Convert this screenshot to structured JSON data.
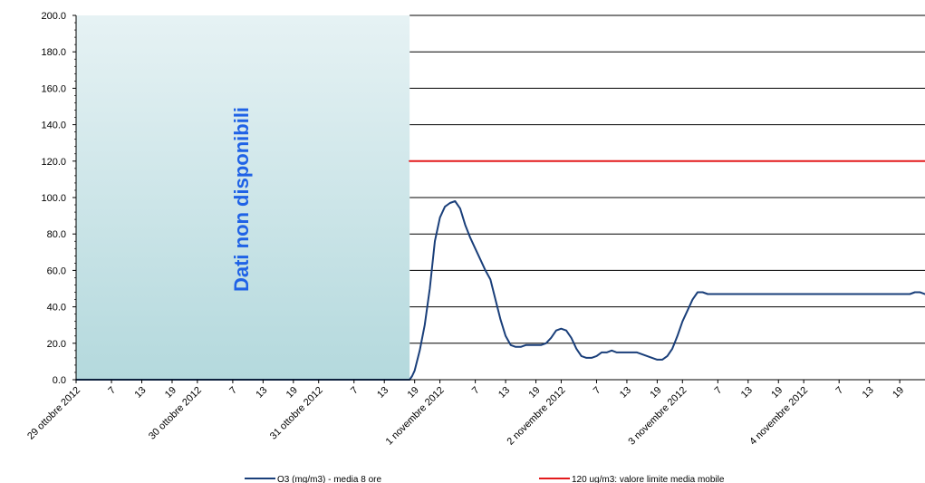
{
  "chart_data": {
    "type": "line",
    "y_ticks": [
      "0.0",
      "20.0",
      "40.0",
      "60.0",
      "80.0",
      "100.0",
      "120.0",
      "140.0",
      "160.0",
      "180.0",
      "200.0"
    ],
    "ylim": [
      0,
      200
    ],
    "x_tick_labels": [
      "29 ottobre 2012",
      "7",
      "13",
      "19",
      "30 ottobre 2012",
      "7",
      "13",
      "19",
      "31 ottobre 2012",
      "7",
      "13",
      "19",
      "1 novembre 2012",
      "7",
      "13",
      "19",
      "2 novembre 2012",
      "7",
      "13",
      "19",
      "3 novembre 2012",
      "7",
      "13",
      "19",
      "4 novembre 2012",
      "7",
      "13",
      "19"
    ],
    "x_unit": "hours from 29 ottobre 2012 00:00",
    "xlim": [
      0,
      168
    ],
    "no_data_text": "Dati non disponibili",
    "no_data_range_hours": [
      0,
      66
    ],
    "grid": "horizontal",
    "series": [
      {
        "name": "O3 (mg/m3) - media 8 ore",
        "color": "#1a3f7a",
        "x": [
          0,
          66,
          66.5,
          67,
          68,
          69,
          70,
          71,
          72,
          73,
          74,
          75,
          76,
          77,
          78,
          79,
          80,
          81,
          82,
          83,
          84,
          85,
          86,
          87,
          88,
          89,
          90,
          91,
          92,
          93,
          94,
          95,
          96,
          97,
          98,
          99,
          100,
          101,
          102,
          103,
          104,
          105,
          106,
          107,
          108,
          109,
          110,
          111,
          112,
          113,
          114,
          115,
          116,
          117,
          118,
          119,
          120,
          121,
          122,
          123,
          124,
          125,
          126,
          127,
          128,
          129,
          130,
          131,
          132,
          133,
          134,
          135,
          136,
          137,
          138,
          139,
          140,
          141,
          142,
          143,
          144,
          145,
          146,
          147,
          148,
          149,
          150,
          151,
          152,
          153,
          154,
          155,
          156,
          157,
          158,
          159,
          160,
          161,
          162,
          163,
          164,
          165,
          166,
          167,
          168
        ],
        "values": [
          0,
          0,
          2,
          5,
          16,
          30,
          50,
          76,
          89,
          95,
          97,
          98,
          94,
          85,
          78,
          72,
          66,
          60,
          55,
          44,
          33,
          24,
          19,
          18,
          18,
          19,
          19,
          19,
          19,
          20,
          23,
          27,
          28,
          27,
          23,
          17,
          13,
          12,
          12,
          13,
          15,
          15,
          16,
          15,
          15,
          15,
          15,
          15,
          14,
          13,
          12,
          11,
          11,
          13,
          17,
          24,
          32,
          38,
          44,
          48,
          48,
          47,
          47,
          47,
          47,
          47,
          47,
          47,
          47,
          47,
          47,
          47,
          47,
          47,
          47,
          47,
          47,
          47,
          47,
          47,
          47,
          47,
          47,
          47,
          47,
          47,
          47,
          47,
          47,
          47,
          47,
          47,
          47,
          47,
          47,
          47,
          47,
          47,
          47,
          47,
          47,
          47,
          48,
          48,
          47
        ]
      },
      {
        "name": "120 ug/m3: valore limite media mobile",
        "color": "#e31a1c",
        "x": [
          66,
          168
        ],
        "values": [
          120,
          120
        ]
      }
    ]
  }
}
